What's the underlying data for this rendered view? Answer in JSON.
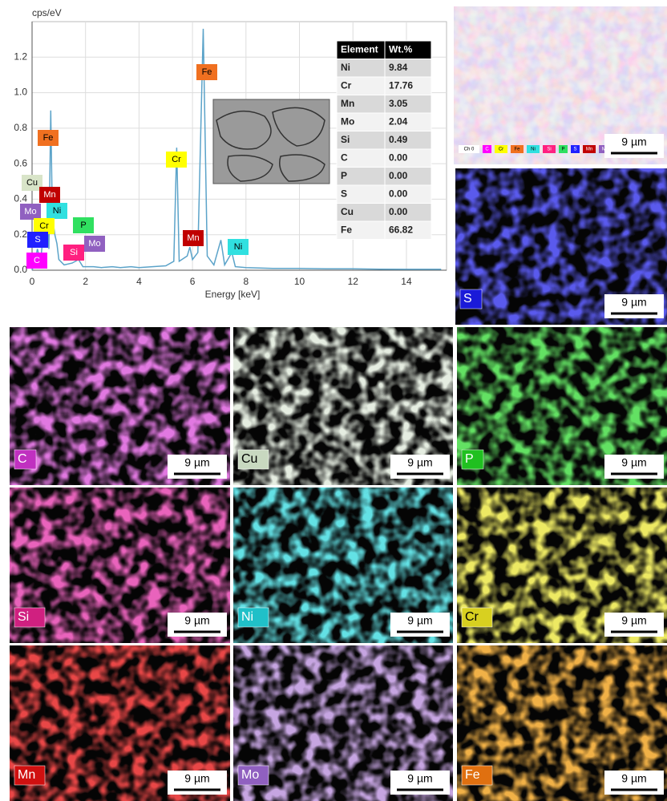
{
  "chart_data": {
    "type": "line",
    "y_label": "cps/eV",
    "x_label": "Energy [keV]",
    "x": [
      0,
      0.1,
      0.2,
      0.28,
      0.35,
      0.45,
      0.52,
      0.57,
      0.63,
      0.7,
      0.76,
      0.85,
      0.93,
      1.0,
      1.2,
      1.5,
      1.74,
      1.9,
      2.3,
      2.6,
      3.0,
      3.3,
      3.7,
      4.0,
      4.5,
      5.0,
      5.3,
      5.41,
      5.5,
      5.8,
      5.9,
      6.0,
      6.2,
      6.4,
      6.55,
      6.8,
      7.06,
      7.2,
      7.47,
      7.6,
      8.0,
      9,
      10,
      11,
      12,
      13,
      14,
      15.3
    ],
    "values": [
      0,
      0.04,
      0.12,
      0.07,
      0.1,
      0.25,
      0.15,
      0.3,
      0.12,
      0.9,
      0.3,
      0.2,
      0.15,
      0.06,
      0.03,
      0.04,
      0.06,
      0.02,
      0.02,
      0.015,
      0.02,
      0.015,
      0.02,
      0.015,
      0.02,
      0.025,
      0.05,
      0.69,
      0.05,
      0.08,
      0.13,
      0.06,
      0.1,
      1.36,
      0.08,
      0.03,
      0.17,
      0.03,
      0.1,
      0.02,
      0.015,
      0.01,
      0.01,
      0.008,
      0.008,
      0.006,
      0.005,
      0.005
    ],
    "color": "#5ba3c9",
    "grid": true,
    "xlim": [
      0,
      15.5
    ],
    "xticks": [
      0,
      2,
      4,
      6,
      8,
      10,
      12,
      14
    ],
    "ylim": [
      0,
      1.4
    ],
    "yticks": [
      {
        "value": 0,
        "label": "0.0"
      },
      0.2,
      0.4,
      0.6,
      0.8,
      {
        "value": 1,
        "label": "1.0"
      },
      1.2
    ],
    "annotations": [
      {
        "text": "Fe",
        "color": "#f07020"
      },
      {
        "text": "Cu",
        "color": "#d8e4c8"
      },
      {
        "text": "Mn",
        "color": "#c00000"
      },
      {
        "text": "Mo",
        "color": "#9060c0"
      },
      {
        "text": "Ni",
        "color": "#30e0e0"
      },
      {
        "text": "Cr",
        "color": "#ffff00"
      },
      {
        "text": "P",
        "color": "#30e060"
      },
      {
        "text": "S",
        "color": "#2020ff"
      },
      {
        "text": "Mo",
        "color": "#9060c0"
      },
      {
        "text": "Si",
        "color": "#ff2080"
      },
      {
        "text": "C",
        "color": "#ff00ff"
      },
      {
        "text": "Cr",
        "color": "#ffff00"
      },
      {
        "text": "Fe",
        "color": "#f07020"
      },
      {
        "text": "Mn",
        "color": "#c00000"
      },
      {
        "text": "Ni",
        "color": "#30e0e0"
      }
    ]
  },
  "table": {
    "header": [
      "Element",
      "Wt.%"
    ],
    "rows": [
      [
        "Ni",
        "9.84"
      ],
      [
        "Cr",
        "17.76"
      ],
      [
        "Mn",
        "3.05"
      ],
      [
        "Mo",
        "2.04"
      ],
      [
        "Si",
        "0.49"
      ],
      [
        "C",
        "0.00"
      ],
      [
        "P",
        "0.00"
      ],
      [
        "S",
        "0.00"
      ],
      [
        "Cu",
        "0.00"
      ],
      [
        "Fe",
        "66.82"
      ]
    ]
  },
  "maps": [
    {
      "scale": "9 µm",
      "legend": [
        {
          "text": "Ch 0",
          "color": "#ffffff"
        },
        {
          "text": "C",
          "color": "#ff00ff"
        },
        {
          "text": "Cr",
          "color": "#ffff00"
        },
        {
          "text": "Fe",
          "color": "#f07020"
        },
        {
          "text": "Ni",
          "color": "#30e0e0"
        },
        {
          "text": "Si",
          "color": "#ff2080"
        },
        {
          "text": "P",
          "color": "#30e060"
        },
        {
          "text": "S",
          "color": "#2020ff"
        },
        {
          "text": "Mn",
          "color": "#c00000"
        },
        {
          "text": "Mo",
          "color": "#9060c0"
        },
        {
          "text": "Cu",
          "color": "#d8e4c8"
        }
      ]
    },
    {
      "label": "S",
      "color": "#1a1ad8",
      "scale": "9 µm"
    },
    {
      "label": "C",
      "color": "#c030c0",
      "scale": "9 µm"
    },
    {
      "label": "Cu",
      "color": "#c8d8c0",
      "scale": "9 µm"
    },
    {
      "label": "P",
      "color": "#20c020",
      "scale": "9 µm"
    },
    {
      "label": "Si",
      "color": "#d02080",
      "scale": "9 µm"
    },
    {
      "label": "Ni",
      "color": "#20c0c8",
      "scale": "9 µm"
    },
    {
      "label": "Cr",
      "color": "#d8d020",
      "scale": "9 µm"
    },
    {
      "label": "Mn",
      "color": "#d01010",
      "scale": "9 µm"
    },
    {
      "label": "Mo",
      "color": "#9060c0",
      "scale": "9 µm"
    },
    {
      "label": "Fe",
      "color": "#e07010",
      "scale": "9 µm"
    }
  ]
}
